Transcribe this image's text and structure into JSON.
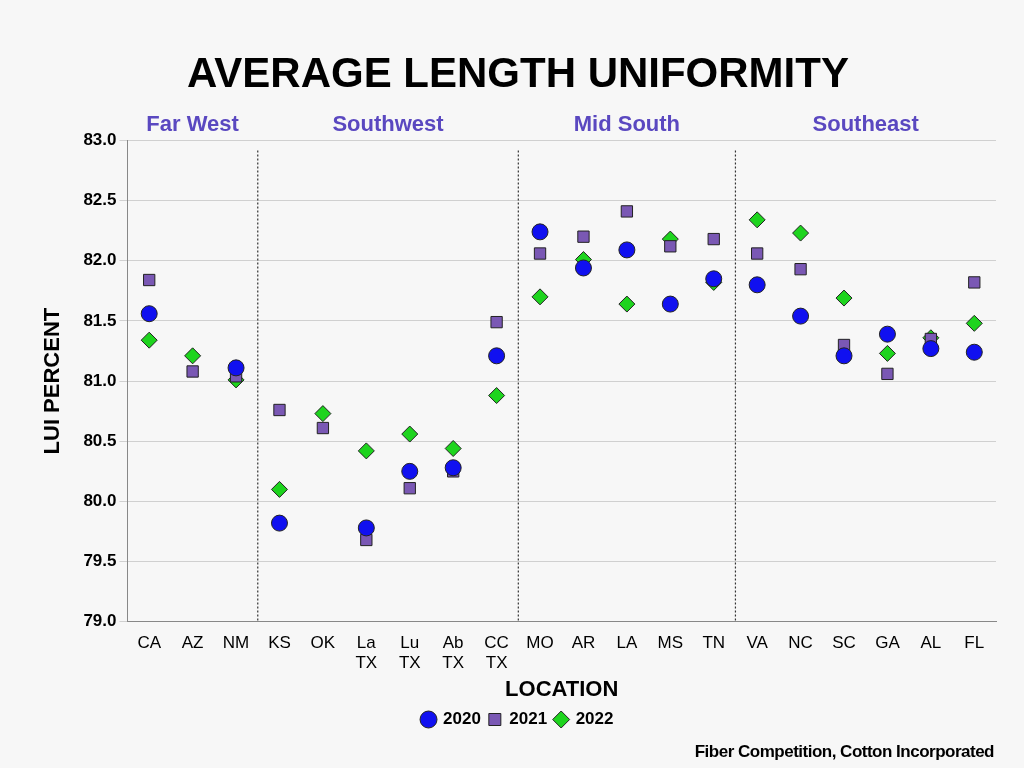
{
  "chart_data": {
    "type": "scatter",
    "title": "AVERAGE LENGTH UNIFORMITY",
    "x_label": "LOCATION",
    "y_label": "LUI PERCENT",
    "source": "Fiber Competition, Cotton Incorporated",
    "categories": [
      "CA",
      "AZ",
      "NM",
      "KS",
      "OK",
      "La TX",
      "Lu TX",
      "Ab TX",
      "CC TX",
      "MO",
      "AR",
      "LA",
      "MS",
      "TN",
      "VA",
      "NC",
      "SC",
      "GA",
      "AL",
      "FL"
    ],
    "regions": [
      {
        "name": "Far West",
        "from": "CA",
        "to": "NM"
      },
      {
        "name": "Southwest",
        "from": "KS",
        "to": "CC TX"
      },
      {
        "name": "Mid South",
        "from": "MO",
        "to": "TN"
      },
      {
        "name": "Southeast",
        "from": "VA",
        "to": "FL"
      }
    ],
    "series": [
      {
        "name": "2020",
        "color": "#1010f0",
        "marker": "circle",
        "values": [
          81.56,
          null,
          81.11,
          79.82,
          null,
          79.78,
          80.25,
          80.28,
          81.21,
          82.24,
          81.94,
          82.09,
          81.64,
          81.85,
          81.8,
          81.54,
          81.21,
          81.39,
          81.27,
          81.24
        ]
      },
      {
        "name": "2021",
        "color": "#7a58b4",
        "marker": "square",
        "values": [
          81.84,
          81.08,
          81.04,
          80.76,
          80.61,
          79.68,
          80.11,
          80.25,
          81.49,
          82.06,
          82.2,
          82.41,
          82.12,
          82.18,
          82.06,
          81.93,
          81.3,
          81.06,
          81.35,
          81.82
        ]
      },
      {
        "name": "2022",
        "color": "#1ed41e",
        "marker": "diamond",
        "values": [
          81.34,
          81.21,
          81.01,
          80.1,
          80.73,
          80.42,
          80.56,
          80.44,
          80.88,
          81.7,
          82.01,
          81.64,
          82.18,
          81.82,
          82.34,
          82.23,
          81.69,
          81.23,
          81.36,
          81.48
        ]
      }
    ],
    "ylim": [
      79,
      83
    ],
    "yticks": [
      {
        "value": 79,
        "label": "79.0"
      },
      79.5,
      {
        "value": 80,
        "label": "80.0"
      },
      80.5,
      {
        "value": 81,
        "label": "81.0"
      },
      81.5,
      {
        "value": 82,
        "label": "82.0"
      },
      82.5,
      {
        "value": 83,
        "label": "83.0"
      }
    ],
    "grid": true,
    "legend": "bottom"
  }
}
